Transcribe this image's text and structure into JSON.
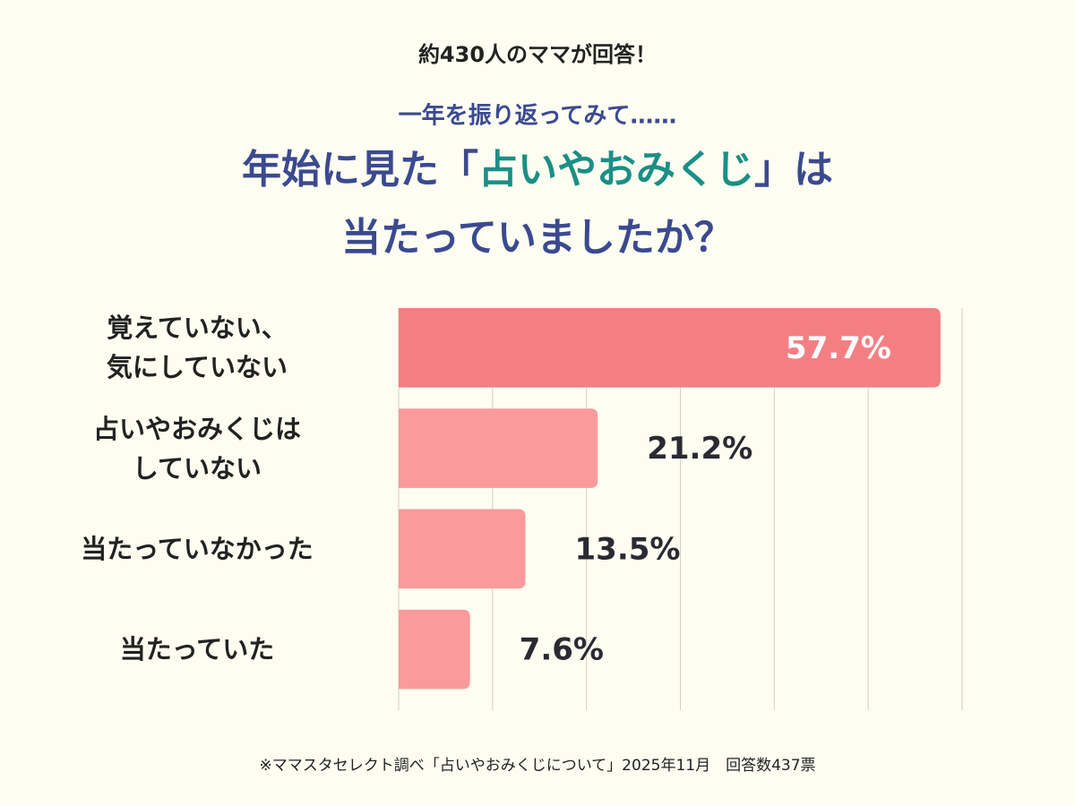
{
  "chart_data": {
    "type": "bar",
    "orientation": "horizontal",
    "header": "約430人のママが回答！",
    "subtitle": "一年を振り返ってみて……",
    "title": [
      "年始に見た「",
      "占いやおみくじ",
      "」は",
      "当たっていましたか？"
    ],
    "title_color": "#3b4a8f",
    "highlight_color": "#1a8f86",
    "categories": [
      "覚えていない、\n気にしていない",
      "占いやおみくじは\nしていない",
      "当たっていなかった",
      "当たっていた"
    ],
    "values": [
      57.7,
      21.2,
      13.5,
      7.6
    ],
    "value_labels": [
      "57.7%",
      "21.2%",
      "13.5%",
      "7.6%"
    ],
    "colors": [
      "#f47f83",
      "#fb9a9b",
      "#fb9a9b",
      "#fb9a9b"
    ],
    "xlim": [
      0,
      60
    ],
    "xticks": [
      0,
      10,
      20,
      30,
      40,
      50,
      60
    ],
    "grid": true,
    "footnote": "※ママスタセレクト調べ「占いやおみくじについて」2025年11月　回答数437票"
  }
}
